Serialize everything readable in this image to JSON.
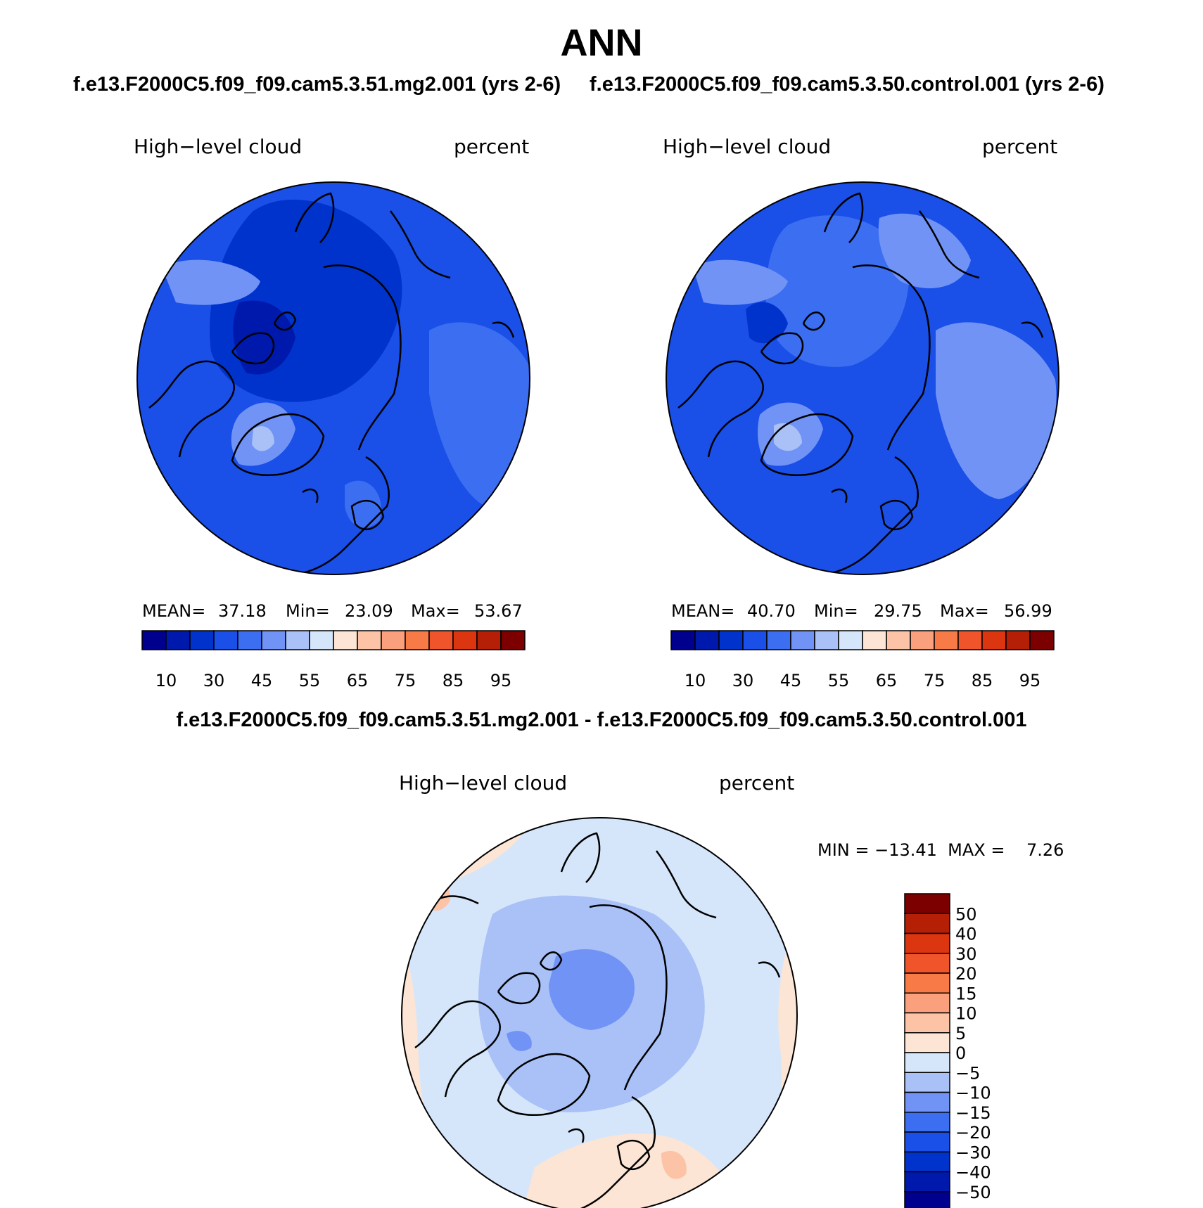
{
  "title": "ANN",
  "panels": [
    {
      "run_title": "f.e13.F2000C5.f09_f09.cam5.3.51.mg2.001 (yrs 2-6)",
      "variable": "High−level cloud",
      "units": "percent",
      "stats": {
        "mean_label": "MEAN=",
        "mean": "37.18",
        "min_label": "Min=",
        "min": "23.09",
        "max_label": "Max=",
        "max": "53.67"
      }
    },
    {
      "run_title": "f.e13.F2000C5.f09_f09.cam5.3.50.control.001 (yrs 2-6)",
      "variable": "High−level cloud",
      "units": "percent",
      "stats": {
        "mean_label": "MEAN=",
        "mean": "40.70",
        "min_label": "Min=",
        "min": "29.75",
        "max_label": "Max=",
        "max": "56.99"
      }
    }
  ],
  "diff": {
    "title": "f.e13.F2000C5.f09_f09.cam5.3.51.mg2.001 - f.e13.F2000C5.f09_f09.cam5.3.50.control.001",
    "variable": "High−level cloud",
    "units": "percent",
    "minmax": "MIN = −13.41  MAX =    7.26"
  },
  "colorbar_main": {
    "colors": [
      "#00008e",
      "#0019ad",
      "#0033cc",
      "#1a4fe8",
      "#3b6ef0",
      "#7093f5",
      "#a9c1f7",
      "#d6e6fa",
      "#fce5d4",
      "#fcc3a6",
      "#fba07d",
      "#f77a47",
      "#f0542a",
      "#dc3610",
      "#b51f06",
      "#7d0000"
    ],
    "labels": [
      "10",
      "30",
      "45",
      "55",
      "65",
      "75",
      "85",
      "95"
    ]
  },
  "colorbar_diff": {
    "colors": [
      "#7d0000",
      "#b51f06",
      "#dc3610",
      "#f0542a",
      "#f77a47",
      "#fba07d",
      "#fcc3a6",
      "#fce5d4",
      "#d6e6fa",
      "#a9c1f7",
      "#7093f5",
      "#3b6ef0",
      "#1a4fe8",
      "#0033cc",
      "#0019ad",
      "#00008e"
    ],
    "labels": [
      "50",
      "40",
      "30",
      "20",
      "15",
      "10",
      "5",
      "0",
      "−5",
      "−10",
      "−15",
      "−20",
      "−30",
      "−40",
      "−50"
    ]
  }
}
